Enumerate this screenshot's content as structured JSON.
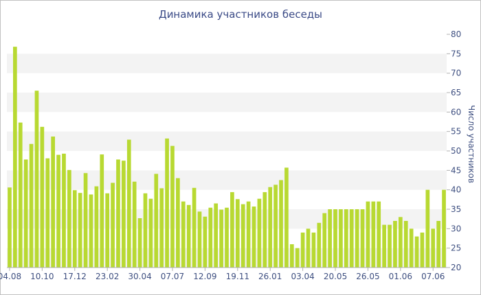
{
  "chart_data": {
    "type": "bar",
    "title": "Динамика участников беседы",
    "ylabel": "Число участников",
    "xlabel": "",
    "ylim": [
      20,
      80
    ],
    "yticks": [
      20,
      25,
      30,
      35,
      40,
      45,
      50,
      55,
      60,
      65,
      70,
      75,
      80
    ],
    "grid": "horizontal-bands",
    "bar_color": "#b8d932",
    "axis_text_color": "#3e4f80",
    "x_tick_labels": [
      {
        "label": "04.08",
        "index": 0
      },
      {
        "label": "10.10",
        "index": 6
      },
      {
        "label": "17.12",
        "index": 12
      },
      {
        "label": "23.02",
        "index": 18
      },
      {
        "label": "30.04",
        "index": 24
      },
      {
        "label": "07.07",
        "index": 30
      },
      {
        "label": "12.09",
        "index": 36
      },
      {
        "label": "19.11",
        "index": 42
      },
      {
        "label": "26.01",
        "index": 48
      },
      {
        "label": "03.04",
        "index": 54
      },
      {
        "label": "20.05",
        "index": 60
      },
      {
        "label": "26.05",
        "index": 66
      },
      {
        "label": "01.06",
        "index": 72
      },
      {
        "label": "07.06",
        "index": 78
      }
    ],
    "values": [
      40.6,
      76.8,
      57.3,
      47.8,
      51.8,
      65.5,
      56.2,
      48.1,
      53.7,
      49,
      49.3,
      45.1,
      39.9,
      39.2,
      44.3,
      38.8,
      40.9,
      49.1,
      39.1,
      41.8,
      47.8,
      47.5,
      52.9,
      42.1,
      32.7,
      39.1,
      37.7,
      44.1,
      40.4,
      53.2,
      51.3,
      43,
      37,
      36.1,
      40.5,
      34.4,
      33.1,
      35.4,
      36.5,
      34.9,
      35.4,
      39.4,
      37.6,
      36.3,
      37,
      35.7,
      37.7,
      39.4,
      40.7,
      41.3,
      42.5,
      45.7,
      26,
      25,
      29,
      30,
      29,
      31.5,
      34,
      35,
      35,
      35,
      35,
      35,
      35,
      35,
      37,
      37,
      37,
      31,
      31,
      32,
      33,
      32,
      30,
      28,
      29,
      40,
      30,
      32,
      40
    ]
  }
}
